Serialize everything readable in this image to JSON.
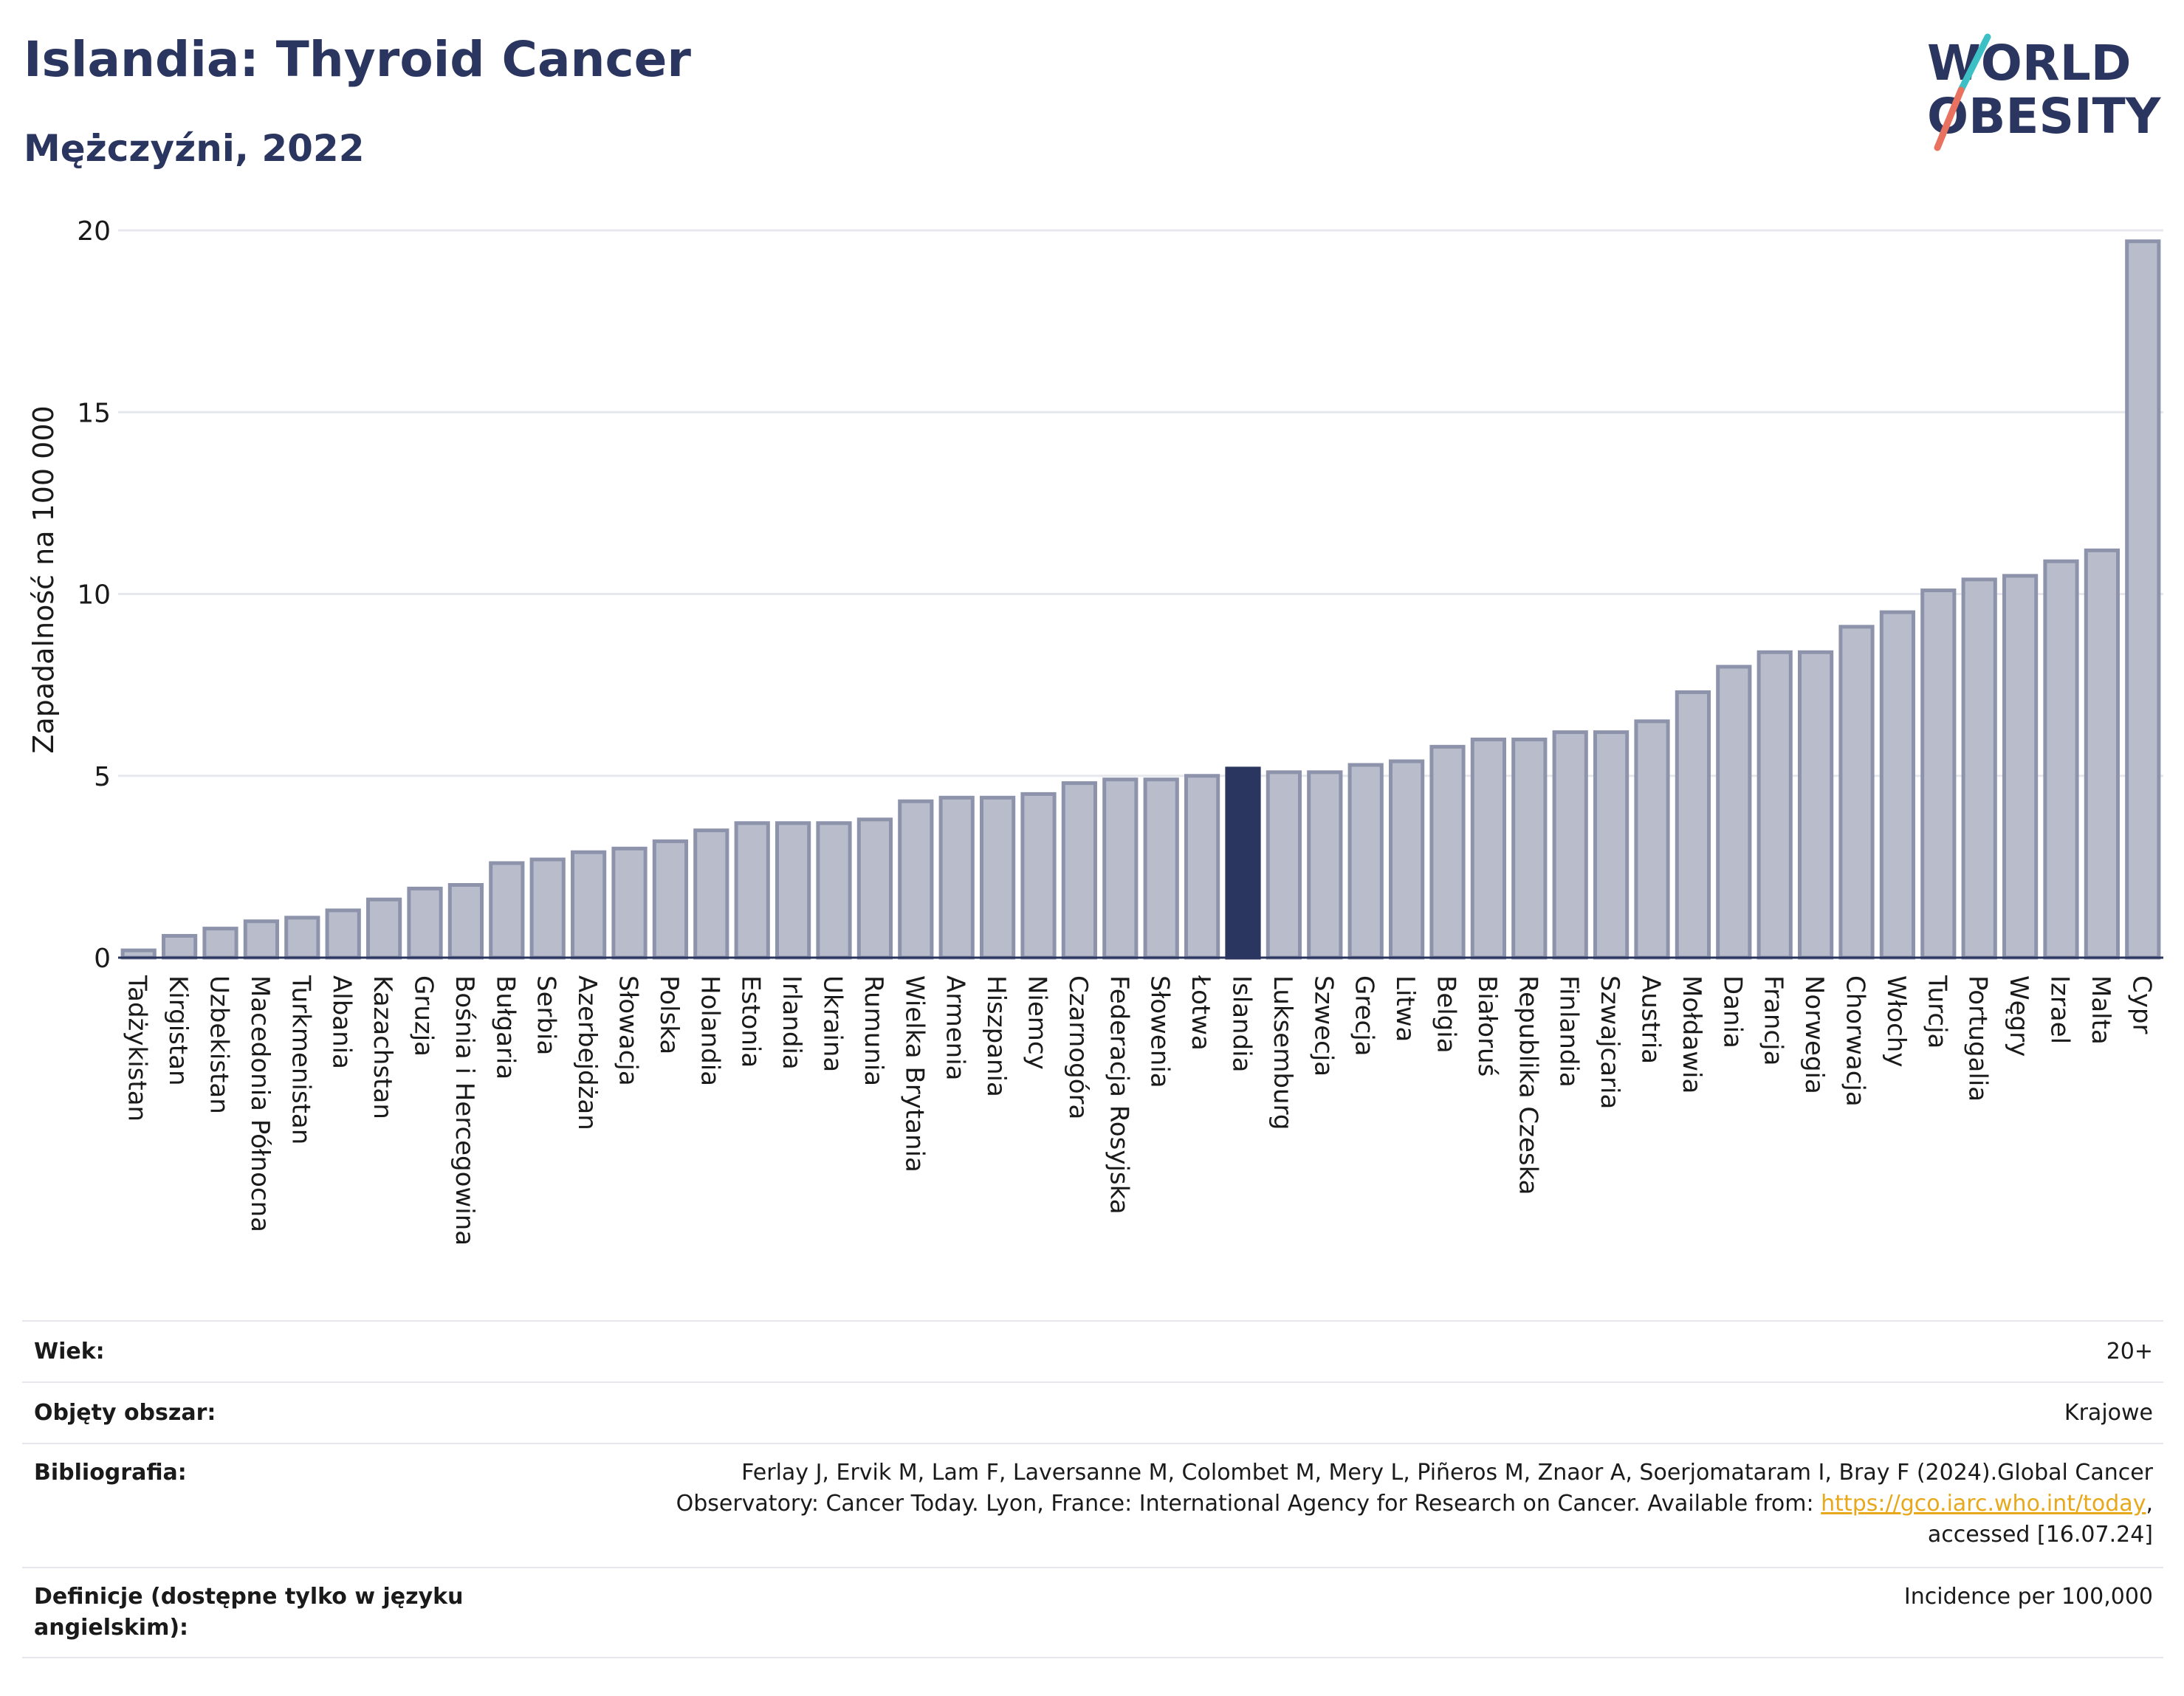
{
  "header": {
    "title": "Islandia: Thyroid Cancer",
    "subtitle": "Mężczyźni, 2022"
  },
  "logo": {
    "line1": "WORLD",
    "line2": "OBESITY",
    "text_color": "#2b3660",
    "slash_colors": [
      "#3cc0c5",
      "#e8725f"
    ]
  },
  "colors": {
    "bar_fill": "#b9bdcb",
    "bar_stroke": "#8d93ab",
    "highlight_fill": "#2b3660",
    "grid": "#e6e8ee",
    "axis": "#2b3660"
  },
  "chart_data": {
    "type": "bar",
    "ylabel": "Zapadalność na 100 000",
    "xlabel": "",
    "ylim": [
      0,
      20
    ],
    "yticks": [
      0,
      5,
      10,
      15,
      20
    ],
    "grid": true,
    "highlight": "Islandia",
    "categories": [
      "Tadżykistan",
      "Kirgistan",
      "Uzbekistan",
      "Macedonia Północna",
      "Turkmenistan",
      "Albania",
      "Kazachstan",
      "Gruzja",
      "Bośnia i Hercegowina",
      "Bułgaria",
      "Serbia",
      "Azerbejdżan",
      "Słowacja",
      "Polska",
      "Holandia",
      "Estonia",
      "Irlandia",
      "Ukraina",
      "Rumunia",
      "Wielka Brytania",
      "Armenia",
      "Hiszpania",
      "Niemcy",
      "Czarnogóra",
      "Federacja Rosyjska",
      "Słowenia",
      "Łotwa",
      "Islandia",
      "Luksemburg",
      "Szwecja",
      "Grecja",
      "Litwa",
      "Belgia",
      "Białoruś",
      "Republika Czeska",
      "Finlandia",
      "Szwajcaria",
      "Austria",
      "Mołdawia",
      "Dania",
      "Francja",
      "Norwegia",
      "Chorwacja",
      "Włochy",
      "Turcja",
      "Portugalia",
      "Węgry",
      "Izrael",
      "Malta",
      "Cypr"
    ],
    "values": [
      0.2,
      0.6,
      0.8,
      1.0,
      1.1,
      1.3,
      1.6,
      1.9,
      2.0,
      2.6,
      2.7,
      2.9,
      3.0,
      3.2,
      3.5,
      3.7,
      3.7,
      3.7,
      3.8,
      4.3,
      4.4,
      4.4,
      4.5,
      4.8,
      4.9,
      4.9,
      5.0,
      5.2,
      5.1,
      5.1,
      5.3,
      5.4,
      5.8,
      6.0,
      6.0,
      6.2,
      6.2,
      6.5,
      7.3,
      8.0,
      8.4,
      8.4,
      9.1,
      9.5,
      10.1,
      10.4,
      10.5,
      10.9,
      11.2,
      19.7
    ]
  },
  "info": {
    "rows": [
      {
        "label": "Wiek:",
        "value": "20+"
      },
      {
        "label": "Objęty obszar:",
        "value": "Krajowe"
      },
      {
        "label": "Bibliografia:",
        "value_lines": [
          "Ferlay J, Ervik M, Lam F, Laversanne M, Colombet M, Mery L, Piñeros M, Znaor A, Soerjomataram I, Bray F (2024).Global Cancer",
          "Observatory: Cancer Today. Lyon, France: International Agency for Research on Cancer. Available from: "
        ],
        "link": "https://gco.iarc.who.int/today",
        "after_link": ",",
        "last_line": "accessed [16.07.24]"
      },
      {
        "label": "Definicje (dostępne tylko w języku angielskim):",
        "value": "Incidence per 100,000"
      }
    ]
  }
}
